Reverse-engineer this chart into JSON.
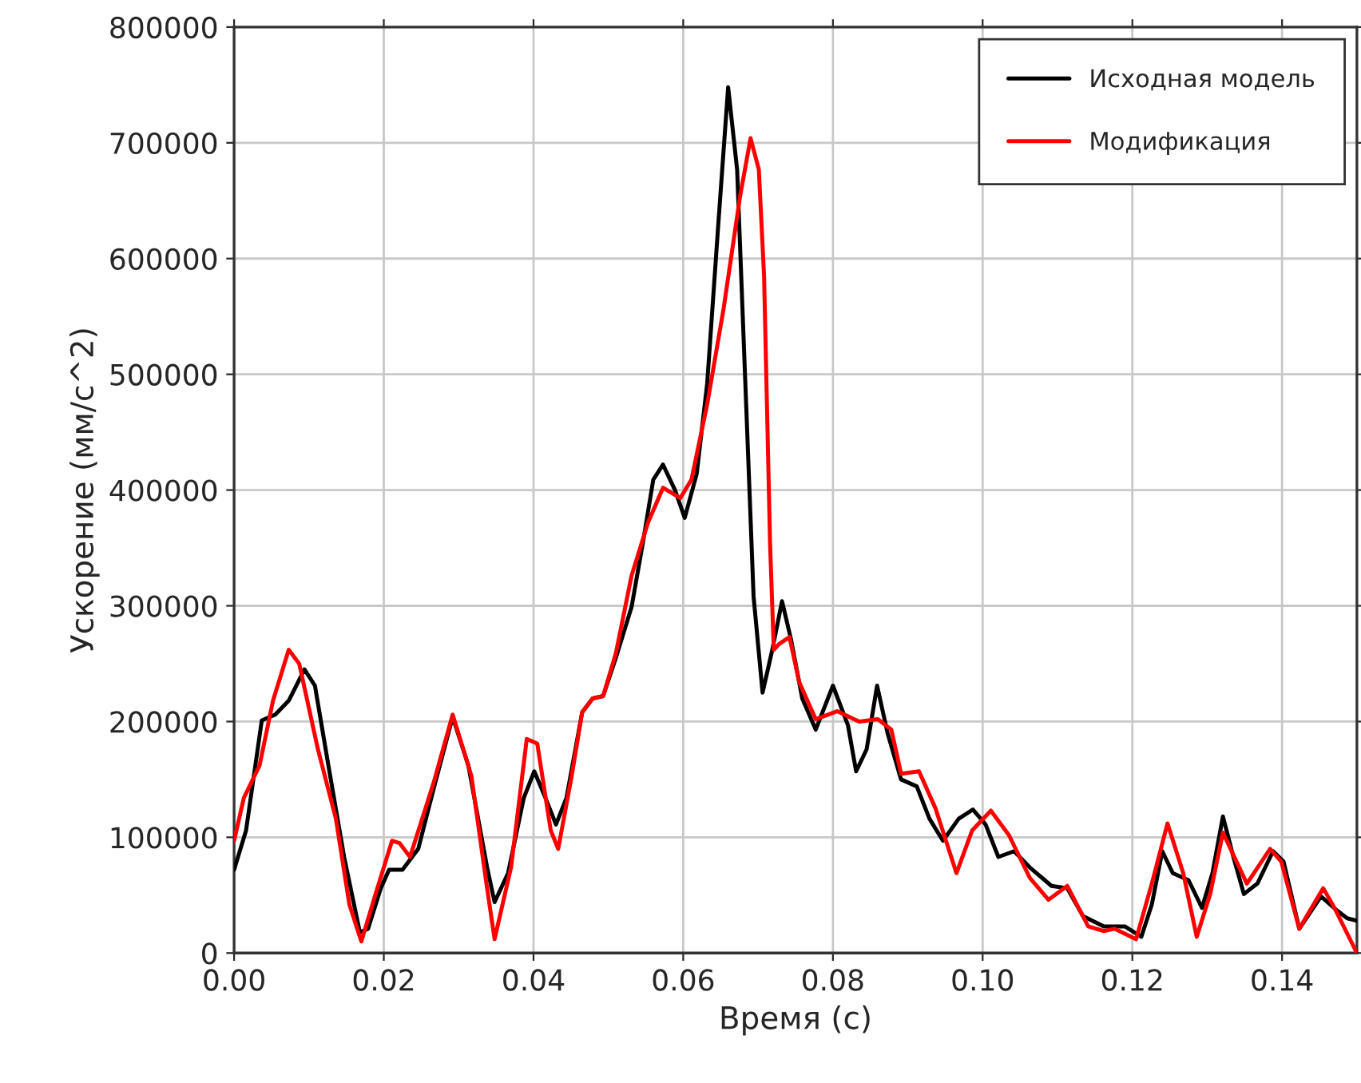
{
  "chart_data": {
    "type": "line",
    "xlabel": "Время (с)",
    "ylabel": "Ускорение (мм/с^2)",
    "xlim": [
      0,
      0.15
    ],
    "xticks": [
      {
        "value": 0,
        "label": "0.00"
      },
      {
        "value": 0.02,
        "label": "0.02"
      },
      {
        "value": 0.04,
        "label": "0.04"
      },
      {
        "value": 0.06,
        "label": "0.06"
      },
      {
        "value": 0.08,
        "label": "0.08"
      },
      {
        "value": 0.1,
        "label": "0.10"
      },
      {
        "value": 0.12,
        "label": "0.12"
      },
      {
        "value": 0.14,
        "label": "0.14"
      }
    ],
    "ylim": [
      0,
      800000
    ],
    "yticks": [
      0,
      100000,
      200000,
      300000,
      400000,
      500000,
      600000,
      700000,
      800000
    ],
    "grid": true,
    "legend": "top right",
    "line_style": "solid",
    "marker": "none",
    "series": [
      {
        "name": "Исходная модель",
        "color": "#000000",
        "x": [
          0,
          0.0016,
          0.0037,
          0.0055,
          0.0073,
          0.0094,
          0.0108,
          0.0126,
          0.0147,
          0.0168,
          0.0179,
          0.0196,
          0.0207,
          0.0225,
          0.0246,
          0.0267,
          0.0292,
          0.0313,
          0.0338,
          0.0348,
          0.0366,
          0.0387,
          0.0401,
          0.0416,
          0.043,
          0.0444,
          0.0465,
          0.0479,
          0.0493,
          0.051,
          0.0531,
          0.0546,
          0.056,
          0.0573,
          0.0589,
          0.0602,
          0.0618,
          0.0632,
          0.0647,
          0.066,
          0.0672,
          0.0683,
          0.0694,
          0.0706,
          0.0719,
          0.0732,
          0.0744,
          0.0759,
          0.0777,
          0.08,
          0.082,
          0.0831,
          0.0845,
          0.0859,
          0.0873,
          0.0891,
          0.0912,
          0.0929,
          0.0947,
          0.0968,
          0.0987,
          0.1004,
          0.1021,
          0.1042,
          0.1063,
          0.1092,
          0.1113,
          0.1134,
          0.1162,
          0.119,
          0.1212,
          0.1226,
          0.124,
          0.1254,
          0.1275,
          0.1293,
          0.1307,
          0.1321,
          0.1335,
          0.1349,
          0.1367,
          0.1388,
          0.1402,
          0.1423,
          0.1452,
          0.1473,
          0.1487,
          0.15
        ],
        "values": [
          72000,
          106000,
          201000,
          206000,
          218000,
          245000,
          231000,
          162000,
          83000,
          18000,
          21000,
          56000,
          72000,
          72000,
          90000,
          143000,
          204000,
          162000,
          74000,
          44000,
          69000,
          134000,
          157000,
          134000,
          111000,
          134000,
          208000,
          220000,
          222000,
          255000,
          299000,
          354000,
          409000,
          422000,
          400000,
          376000,
          414000,
          492000,
          631000,
          748000,
          677000,
          492000,
          308000,
          225000,
          262000,
          304000,
          271000,
          220000,
          193000,
          231000,
          197000,
          157000,
          176000,
          231000,
          190000,
          150000,
          144000,
          116000,
          97000,
          116000,
          124000,
          111000,
          83000,
          88000,
          74000,
          58000,
          56000,
          32000,
          23000,
          23000,
          14000,
          42000,
          88000,
          69000,
          63000,
          39000,
          69000,
          118000,
          83000,
          51000,
          60000,
          88000,
          79000,
          21000,
          49000,
          37000,
          30000,
          28000
        ]
      },
      {
        "name": "Модификация",
        "color": "#ff0000",
        "x": [
          0,
          0.0013,
          0.0034,
          0.0052,
          0.0073,
          0.0087,
          0.0112,
          0.0136,
          0.0154,
          0.017,
          0.0189,
          0.0211,
          0.0221,
          0.0235,
          0.0267,
          0.0292,
          0.0317,
          0.0338,
          0.0348,
          0.037,
          0.0391,
          0.0405,
          0.0423,
          0.0433,
          0.0451,
          0.0465,
          0.0479,
          0.0493,
          0.051,
          0.0531,
          0.0553,
          0.0573,
          0.0596,
          0.0611,
          0.0632,
          0.0654,
          0.0676,
          0.069,
          0.0701,
          0.0708,
          0.0716,
          0.0721,
          0.0728,
          0.0742,
          0.0755,
          0.0777,
          0.0806,
          0.0835,
          0.086,
          0.0878,
          0.0891,
          0.0915,
          0.0937,
          0.0965,
          0.0986,
          0.1011,
          0.1035,
          0.1063,
          0.1088,
          0.1113,
          0.1141,
          0.1162,
          0.1176,
          0.1205,
          0.1226,
          0.1247,
          0.1268,
          0.1286,
          0.1304,
          0.1321,
          0.1353,
          0.1384,
          0.1399,
          0.1423,
          0.1455,
          0.147,
          0.15
        ],
        "values": [
          97000,
          134000,
          162000,
          218000,
          262000,
          250000,
          176000,
          116000,
          42000,
          10000,
          51000,
          97000,
          95000,
          83000,
          148000,
          206000,
          153000,
          56000,
          12000,
          74000,
          185000,
          181000,
          106000,
          90000,
          153000,
          208000,
          220000,
          222000,
          259000,
          326000,
          372000,
          402000,
          393000,
          409000,
          474000,
          557000,
          654000,
          704000,
          677000,
          585000,
          354000,
          262000,
          267000,
          273000,
          234000,
          202000,
          209000,
          200000,
          202000,
          193000,
          155000,
          157000,
          125000,
          69000,
          106000,
          123000,
          102000,
          65000,
          46000,
          58000,
          23000,
          19000,
          21000,
          12000,
          60000,
          112000,
          69000,
          14000,
          51000,
          104000,
          60000,
          90000,
          79000,
          21000,
          56000,
          39000,
          0
        ]
      }
    ]
  }
}
